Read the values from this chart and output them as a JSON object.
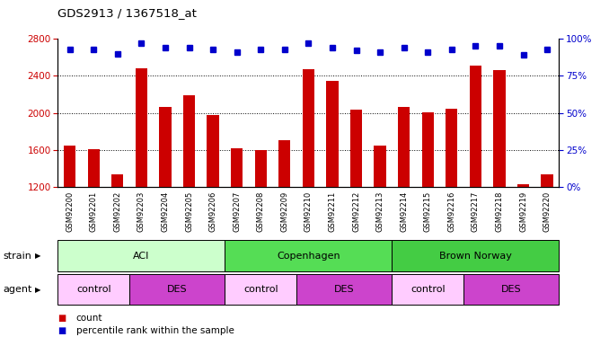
{
  "title": "GDS2913 / 1367518_at",
  "samples": [
    "GSM92200",
    "GSM92201",
    "GSM92202",
    "GSM92203",
    "GSM92204",
    "GSM92205",
    "GSM92206",
    "GSM92207",
    "GSM92208",
    "GSM92209",
    "GSM92210",
    "GSM92211",
    "GSM92212",
    "GSM92213",
    "GSM92214",
    "GSM92215",
    "GSM92216",
    "GSM92217",
    "GSM92218",
    "GSM92219",
    "GSM92220"
  ],
  "counts": [
    1650,
    1610,
    1340,
    2480,
    2060,
    2190,
    1980,
    1620,
    1600,
    1710,
    2470,
    2350,
    2040,
    1645,
    2060,
    2010,
    2045,
    2510,
    2460,
    1230,
    1340
  ],
  "percentiles": [
    93,
    93,
    90,
    97,
    94,
    94,
    93,
    91,
    93,
    93,
    97,
    94,
    92,
    91,
    94,
    91,
    93,
    95,
    95,
    89,
    93
  ],
  "ylim_left": [
    1200,
    2800
  ],
  "ylim_right": [
    0,
    100
  ],
  "yticks_left": [
    1200,
    1600,
    2000,
    2400,
    2800
  ],
  "yticks_right": [
    0,
    25,
    50,
    75,
    100
  ],
  "bar_color": "#cc0000",
  "dot_color": "#0000cc",
  "strain_groups": [
    {
      "label": "ACI",
      "start": 0,
      "end": 7,
      "color": "#ccffcc"
    },
    {
      "label": "Copenhagen",
      "start": 7,
      "end": 14,
      "color": "#55dd55"
    },
    {
      "label": "Brown Norway",
      "start": 14,
      "end": 21,
      "color": "#44cc44"
    }
  ],
  "agent_groups": [
    {
      "label": "control",
      "start": 0,
      "end": 3,
      "color": "#ffccff"
    },
    {
      "label": "DES",
      "start": 3,
      "end": 7,
      "color": "#cc44cc"
    },
    {
      "label": "control",
      "start": 7,
      "end": 10,
      "color": "#ffccff"
    },
    {
      "label": "DES",
      "start": 10,
      "end": 14,
      "color": "#cc44cc"
    },
    {
      "label": "control",
      "start": 14,
      "end": 17,
      "color": "#ffccff"
    },
    {
      "label": "DES",
      "start": 17,
      "end": 21,
      "color": "#cc44cc"
    }
  ],
  "bar_color_legend": "#cc0000",
  "dot_color_legend": "#0000cc",
  "tick_label_color_left": "#cc0000",
  "tick_label_color_right": "#0000cc",
  "xlabel_area_bg": "#cccccc",
  "grid_dotted_at": [
    1600,
    2000,
    2400
  ],
  "bar_width": 0.5
}
